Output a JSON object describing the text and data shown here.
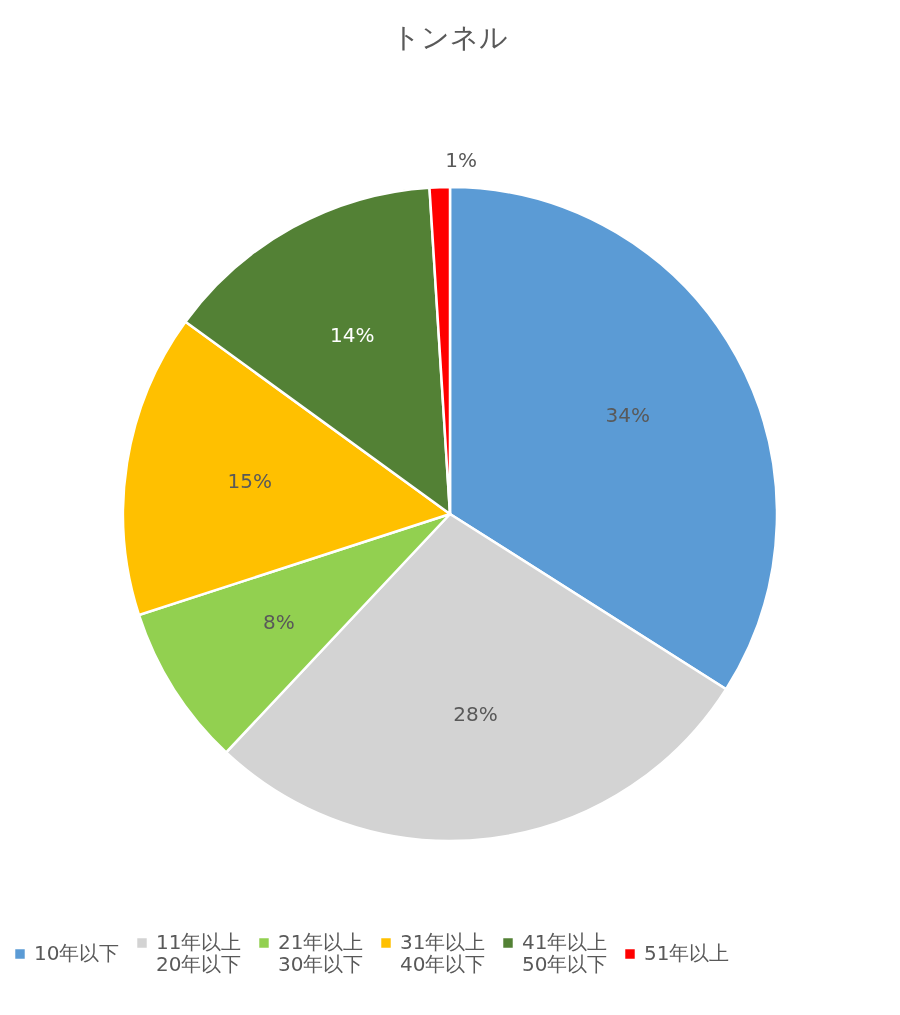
{
  "chart_data": {
    "type": "pie",
    "title": "トンネル",
    "categories": [
      "10年以下",
      "11年以上 20年以下",
      "21年以上 30年以下",
      "31年以上 40年以下",
      "41年以上 50年以下",
      "51年以上"
    ],
    "values": [
      34,
      28,
      8,
      15,
      14,
      1
    ],
    "colors": [
      "#5b9bd5",
      "#d3d3d3",
      "#92d050",
      "#ffc000",
      "#538135",
      "#ff0000"
    ],
    "value_labels": [
      "34%",
      "28%",
      "8%",
      "15%",
      "14%",
      "1%"
    ],
    "legend": "bottom"
  }
}
